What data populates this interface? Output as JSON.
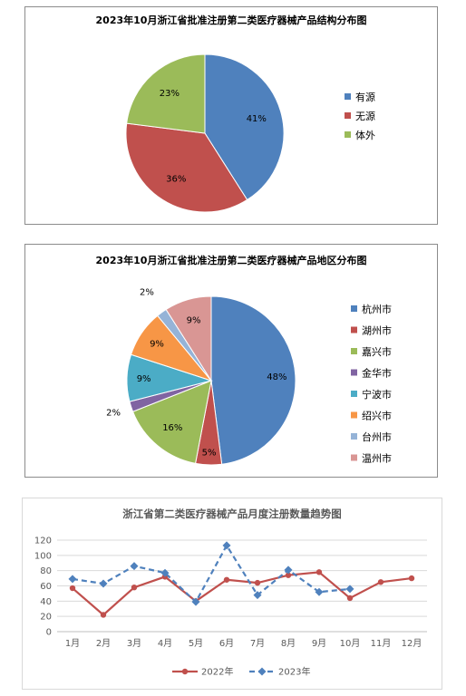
{
  "chart_data": [
    {
      "type": "pie",
      "title": "2023年10月浙江省批准注册第二类医疗器械产品结构分布图",
      "categories": [
        "有源",
        "无源",
        "体外"
      ],
      "values": [
        41,
        36,
        23
      ],
      "labels": [
        "41%",
        "36%",
        "23%"
      ],
      "colors": [
        "#4f81bd",
        "#c0504d",
        "#9bbb59"
      ],
      "legend": "right"
    },
    {
      "type": "pie",
      "title": "2023年10月浙江省批准注册第二类医疗器械产品地区分布图",
      "categories": [
        "杭州市",
        "湖州市",
        "嘉兴市",
        "金华市",
        "宁波市",
        "绍兴市",
        "台州市",
        "温州市"
      ],
      "values": [
        48,
        5,
        16,
        2,
        9,
        9,
        2,
        9
      ],
      "labels": [
        "48%",
        "5%",
        "16%",
        "2%",
        "9%",
        "9%",
        "2%",
        "9%"
      ],
      "colors": [
        "#4f81bd",
        "#c0504d",
        "#9bbb59",
        "#8064a2",
        "#4bacc6",
        "#f79646",
        "#95b3d7",
        "#d99694"
      ],
      "legend": "right"
    },
    {
      "type": "line",
      "title": "浙江省第二类医疗器械产品月度注册数量趋势图",
      "categories": [
        "1月",
        "2月",
        "3月",
        "4月",
        "5月",
        "6月",
        "7月",
        "8月",
        "9月",
        "10月",
        "11月",
        "12月"
      ],
      "series": [
        {
          "name": "2022年",
          "values": [
            57,
            22,
            58,
            72,
            40,
            68,
            64,
            74,
            78,
            44,
            65,
            70
          ],
          "color": "#c0504d"
        },
        {
          "name": "2023年",
          "values": [
            69,
            63,
            86,
            77,
            39,
            113,
            48,
            81,
            52,
            56,
            null,
            null
          ],
          "color": "#4f81bd"
        }
      ],
      "ylim": [
        0,
        120
      ],
      "yticks": [
        0,
        20,
        40,
        60,
        80,
        100,
        120
      ],
      "grid": true,
      "legend": "bottom"
    }
  ]
}
